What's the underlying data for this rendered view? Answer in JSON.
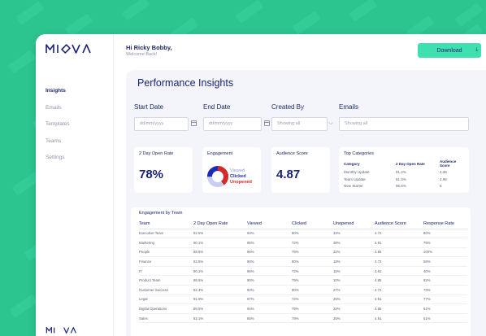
{
  "brand": {
    "logo_text": "MIOVA",
    "colors": {
      "accent": "#3fe0b0",
      "navy": "#1a2378",
      "background": "#2cc48f",
      "donut_red": "#d42a2a",
      "donut_blue": "#1d2bb5",
      "donut_light": "#c9cdf2"
    }
  },
  "sidebar": {
    "items": [
      {
        "label": "Insights",
        "active": true
      },
      {
        "label": "Emails",
        "active": false
      },
      {
        "label": "Templates",
        "active": false
      },
      {
        "label": "Teams",
        "active": false
      },
      {
        "label": "Settings",
        "active": false
      }
    ]
  },
  "header": {
    "greeting": "Hi Ricky Bobby,",
    "subtitle": "Welcome Back!",
    "download_label": "Download",
    "download_icon": "download-icon"
  },
  "page": {
    "title": "Performance Insights"
  },
  "filters": {
    "start_date": {
      "label": "Start Date",
      "placeholder": "dd/mm/yyyy"
    },
    "end_date": {
      "label": "End Date",
      "placeholder": "dd/mm/yyyy"
    },
    "created_by": {
      "label": "Created By",
      "value": "Showing all"
    },
    "emails": {
      "label": "Emails",
      "value": "Showing all"
    }
  },
  "cards": {
    "open_rate": {
      "title": "2 Day Open Rate",
      "value": "78%"
    },
    "engagement": {
      "title": "Engagement",
      "legend": [
        "Viewed",
        "Clicked",
        "Unopened"
      ]
    },
    "audience": {
      "title": "Audience Score",
      "value": "4.87"
    },
    "top_categories": {
      "title": "Top Categories",
      "headers": [
        "Category",
        "2 Day Open Rate",
        "Audience Score"
      ],
      "rows": [
        [
          "Monthly Update",
          "91.4%",
          "4.35"
        ],
        [
          "Team Update",
          "81.3%",
          "4.98"
        ],
        [
          "New Starter",
          "96.8%",
          "5"
        ]
      ]
    }
  },
  "engagement_table": {
    "title": "Engagement by Team",
    "headers": [
      "Team",
      "2 Day Open Rate",
      "Viewed",
      "Clicked",
      "Unopened",
      "Audience Score",
      "Response Rate"
    ],
    "rows": [
      [
        "Executive Team",
        "92.5%",
        "94%",
        "80%",
        "33%",
        "4.72",
        "80%"
      ],
      [
        "Marketing",
        "90.1%",
        "95%",
        "72%",
        "38%",
        "4.91",
        "79%"
      ],
      [
        "People",
        "88.6%",
        "96%",
        "79%",
        "22%",
        "4.85",
        "100%"
      ],
      [
        "Finance",
        "92.5%",
        "90%",
        "80%",
        "18%",
        "4.72",
        "58%"
      ],
      [
        "IT",
        "90.1%",
        "96%",
        "72%",
        "15%",
        "4.91",
        "40%"
      ],
      [
        "Product Team",
        "88.6%",
        "90%",
        "79%",
        "10%",
        "4.85",
        "92%"
      ],
      [
        "Customer Success",
        "92.3%",
        "93%",
        "80%",
        "27%",
        "4.72",
        "73%"
      ],
      [
        "Legal",
        "91.9%",
        "97%",
        "72%",
        "25%",
        "4.91",
        "77%"
      ],
      [
        "Digital Operations",
        "88.5%",
        "94%",
        "79%",
        "23%",
        "4.85",
        "61%"
      ],
      [
        "Sales",
        "82.1%",
        "85%",
        "79%",
        "25%",
        "4.91",
        "51%"
      ]
    ]
  }
}
